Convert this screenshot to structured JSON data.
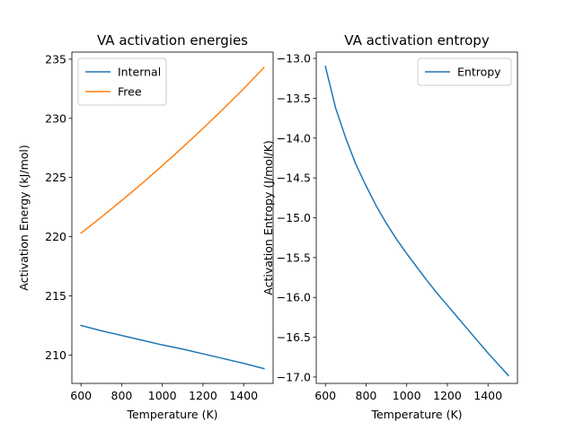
{
  "chart_data": [
    {
      "type": "line",
      "title": "VA activation energies",
      "xlabel": "Temperature (K)",
      "ylabel": "Activation Energy (kJ/mol)",
      "xlim": [
        555,
        1545
      ],
      "ylim": [
        207.6,
        235.6
      ],
      "xticks": [
        600,
        800,
        1000,
        1200,
        1400
      ],
      "yticks": [
        210,
        215,
        220,
        225,
        230,
        235
      ],
      "legend_position": "upper-left",
      "series": [
        {
          "name": "Internal",
          "color": "#1f77b4",
          "x": [
            600,
            700,
            800,
            900,
            1000,
            1100,
            1200,
            1300,
            1400,
            1500
          ],
          "y": [
            212.5,
            212.05,
            211.65,
            211.25,
            210.85,
            210.5,
            210.1,
            209.7,
            209.3,
            208.85
          ]
        },
        {
          "name": "Free",
          "color": "#ff7f0e",
          "x": [
            600,
            700,
            800,
            900,
            1000,
            1100,
            1200,
            1300,
            1400,
            1500
          ],
          "y": [
            220.3,
            221.65,
            223.05,
            224.5,
            226.0,
            227.55,
            229.15,
            230.8,
            232.5,
            234.3
          ]
        }
      ]
    },
    {
      "type": "line",
      "title": "VA activation entropy",
      "xlabel": "Temperature (K)",
      "ylabel": "Activation Entropy (J/mol/K)",
      "xlim": [
        555,
        1545
      ],
      "ylim": [
        -17.08,
        -12.92
      ],
      "xticks": [
        600,
        800,
        1000,
        1200,
        1400
      ],
      "yticks": [
        -13.0,
        -13.5,
        -14.0,
        -14.5,
        -15.0,
        -15.5,
        -16.0,
        -16.5,
        -17.0
      ],
      "ytick_labels": [
        "−13.0",
        "−13.5",
        "−14.0",
        "−14.5",
        "−15.0",
        "−15.5",
        "−16.0",
        "−16.5",
        "−17.0"
      ],
      "legend_position": "upper-right",
      "series": [
        {
          "name": "Entropy",
          "color": "#1f77b4",
          "x": [
            600,
            650,
            700,
            750,
            800,
            850,
            900,
            950,
            1000,
            1050,
            1100,
            1150,
            1200,
            1250,
            1300,
            1350,
            1400,
            1450,
            1500
          ],
          "y": [
            -13.1,
            -13.62,
            -14.0,
            -14.33,
            -14.6,
            -14.85,
            -15.07,
            -15.27,
            -15.45,
            -15.62,
            -15.79,
            -15.95,
            -16.1,
            -16.25,
            -16.4,
            -16.55,
            -16.7,
            -16.84,
            -16.98
          ]
        }
      ]
    }
  ]
}
